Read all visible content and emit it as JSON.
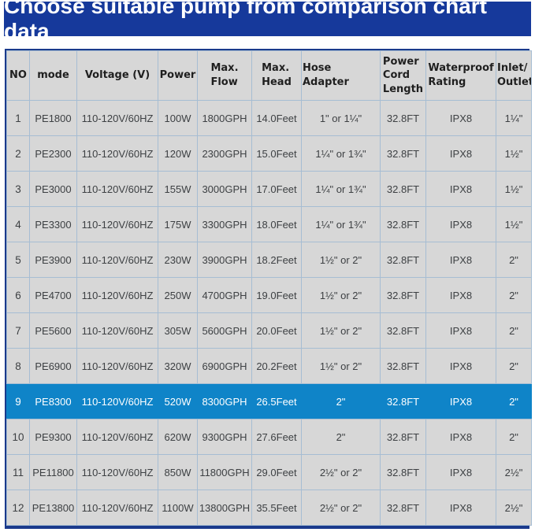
{
  "banner": {
    "title": "Choose suitable pump from comparison chart data"
  },
  "colors": {
    "banner_bg": "#16399b",
    "highlight_row_bg": "#0f84c8",
    "cell_bg": "#d7d7d7",
    "inner_border": "#a6bdd3",
    "outer_border": "#1a3a8c",
    "banner_text": "#ffffff",
    "cell_text": "#3d4043"
  },
  "chart_data": {
    "type": "table",
    "title": "Choose suitable pump from comparison chart data",
    "columns": [
      "NO",
      "mode",
      "Voltage (V)",
      "Power",
      "Max.\nFlow",
      "Max.\nHead",
      "Hose Adapter",
      "Power\nCord\nLength",
      "Waterproof\nRating",
      "Inlet/\nOutlet"
    ],
    "highlighted_row_index": 8,
    "rows": [
      [
        "1",
        "PE1800",
        "110-120V/60HZ",
        "100W",
        "1800GPH",
        "14.0Feet",
        "1\" or 1¼\"",
        "32.8FT",
        "IPX8",
        "1¼\""
      ],
      [
        "2",
        "PE2300",
        "110-120V/60HZ",
        "120W",
        "2300GPH",
        "15.0Feet",
        "1¼\" or 1¾\"",
        "32.8FT",
        "IPX8",
        "1½\""
      ],
      [
        "3",
        "PE3000",
        "110-120V/60HZ",
        "155W",
        "3000GPH",
        "17.0Feet",
        "1¼\" or 1¾\"",
        "32.8FT",
        "IPX8",
        "1½\""
      ],
      [
        "4",
        "PE3300",
        "110-120V/60HZ",
        "175W",
        "3300GPH",
        "18.0Feet",
        "1¼\" or 1¾\"",
        "32.8FT",
        "IPX8",
        "1½\""
      ],
      [
        "5",
        "PE3900",
        "110-120V/60HZ",
        "230W",
        "3900GPH",
        "18.2Feet",
        "1½\" or 2\"",
        "32.8FT",
        "IPX8",
        "2\""
      ],
      [
        "6",
        "PE4700",
        "110-120V/60HZ",
        "250W",
        "4700GPH",
        "19.0Feet",
        "1½\" or 2\"",
        "32.8FT",
        "IPX8",
        "2\""
      ],
      [
        "7",
        "PE5600",
        "110-120V/60HZ",
        "305W",
        "5600GPH",
        "20.0Feet",
        "1½\" or 2\"",
        "32.8FT",
        "IPX8",
        "2\""
      ],
      [
        "8",
        "PE6900",
        "110-120V/60HZ",
        "320W",
        "6900GPH",
        "20.2Feet",
        "1½\" or 2\"",
        "32.8FT",
        "IPX8",
        "2\""
      ],
      [
        "9",
        "PE8300",
        "110-120V/60HZ",
        "520W",
        "8300GPH",
        "26.5Feet",
        "2\"",
        "32.8FT",
        "IPX8",
        "2\""
      ],
      [
        "10",
        "PE9300",
        "110-120V/60HZ",
        "620W",
        "9300GPH",
        "27.6Feet",
        "2\"",
        "32.8FT",
        "IPX8",
        "2\""
      ],
      [
        "11",
        "PE11800",
        "110-120V/60HZ",
        "850W",
        "11800GPH",
        "29.0Feet",
        "2½\" or 2\"",
        "32.8FT",
        "IPX8",
        "2½\""
      ],
      [
        "12",
        "PE13800",
        "110-120V/60HZ",
        "1100W",
        "13800GPH",
        "35.5Feet",
        "2½\" or 2\"",
        "32.8FT",
        "IPX8",
        "2½\""
      ]
    ]
  }
}
